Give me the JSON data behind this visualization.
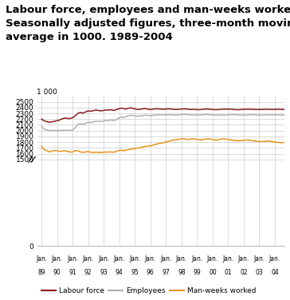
{
  "title_line1": "Labour force, employees and man-weeks worked.",
  "title_line2": "Seasonally adjusted figures, three-month moving",
  "title_line3": "average in 1000. 1989-2004",
  "title_fontsize": 9.5,
  "ylim": [
    0,
    2600
  ],
  "yticks": [
    0,
    1500,
    1600,
    1700,
    1800,
    1900,
    2000,
    2100,
    2200,
    2300,
    2400,
    2500
  ],
  "ytick_labels": [
    "0",
    "1500",
    "1600",
    "1700",
    "1800",
    "1900",
    "2000",
    "2100",
    "2200",
    "2300",
    "2400",
    "2500"
  ],
  "top_label": "1 000",
  "labour_force_color": "#8B1A1A",
  "employees_color": "#B0B0B0",
  "manweeks_color": "#E8921A",
  "legend_labels": [
    "Labour force",
    "Employees",
    "Man-weeks worked"
  ],
  "line_width": 1.1,
  "background_color": "#ffffff",
  "grid_color": "#cccccc",
  "labour_force": [
    2200,
    2185,
    2170,
    2162,
    2155,
    2152,
    2148,
    2150,
    2152,
    2158,
    2162,
    2168,
    2172,
    2178,
    2185,
    2195,
    2205,
    2212,
    2218,
    2215,
    2212,
    2208,
    2210,
    2215,
    2225,
    2242,
    2260,
    2278,
    2298,
    2308,
    2315,
    2308,
    2305,
    2312,
    2325,
    2335,
    2342,
    2338,
    2336,
    2340,
    2348,
    2352,
    2358,
    2353,
    2348,
    2344,
    2342,
    2346,
    2352,
    2358,
    2354,
    2354,
    2358,
    2362,
    2358,
    2354,
    2354,
    2358,
    2366,
    2376,
    2382,
    2388,
    2388,
    2383,
    2378,
    2373,
    2382,
    2388,
    2393,
    2393,
    2388,
    2383,
    2378,
    2373,
    2368,
    2366,
    2368,
    2373,
    2378,
    2383,
    2383,
    2378,
    2373,
    2368,
    2366,
    2368,
    2373,
    2375,
    2376,
    2378,
    2378,
    2376,
    2373,
    2371,
    2370,
    2371,
    2376,
    2378,
    2378,
    2376,
    2374,
    2371,
    2370,
    2368,
    2366,
    2368,
    2371,
    2373,
    2374,
    2376,
    2376,
    2376,
    2373,
    2371,
    2368,
    2366,
    2366,
    2368,
    2368,
    2366,
    2364,
    2363,
    2363,
    2366,
    2368,
    2371,
    2373,
    2374,
    2374,
    2372,
    2370,
    2368,
    2366,
    2364,
    2363,
    2363,
    2364,
    2366,
    2368,
    2370,
    2371,
    2372,
    2373,
    2374,
    2374,
    2372,
    2370,
    2368,
    2366,
    2364,
    2363,
    2363,
    2363,
    2365,
    2366,
    2368,
    2369,
    2370,
    2371,
    2372,
    2371,
    2370,
    2369,
    2368,
    2367,
    2366,
    2365,
    2365,
    2365,
    2366,
    2367,
    2368,
    2369,
    2370,
    2369,
    2368,
    2367,
    2366,
    2366,
    2367,
    2368,
    2369,
    2370,
    2369,
    2368,
    2367,
    2366,
    2365,
    2364,
    2365,
    2366,
    2368
  ],
  "employees": [
    2075,
    2045,
    2025,
    2018,
    2012,
    2008,
    2004,
    2003,
    2002,
    2002,
    2002,
    2003,
    2003,
    2002,
    2002,
    2003,
    2005,
    2007,
    2009,
    2007,
    2005,
    2004,
    2005,
    2007,
    2012,
    2030,
    2055,
    2078,
    2108,
    2115,
    2120,
    2112,
    2108,
    2112,
    2126,
    2136,
    2144,
    2141,
    2141,
    2144,
    2151,
    2158,
    2166,
    2164,
    2161,
    2159,
    2158,
    2161,
    2166,
    2174,
    2171,
    2171,
    2176,
    2184,
    2181,
    2178,
    2179,
    2182,
    2196,
    2211,
    2221,
    2231,
    2234,
    2231,
    2231,
    2241,
    2251,
    2258,
    2264,
    2266,
    2264,
    2261,
    2258,
    2254,
    2251,
    2251,
    2254,
    2258,
    2261,
    2266,
    2268,
    2266,
    2264,
    2261,
    2258,
    2261,
    2266,
    2269,
    2270,
    2272,
    2274,
    2273,
    2271,
    2270,
    2269,
    2270,
    2274,
    2276,
    2278,
    2276,
    2274,
    2272,
    2271,
    2270,
    2268,
    2270,
    2273,
    2276,
    2278,
    2280,
    2281,
    2281,
    2278,
    2276,
    2274,
    2272,
    2271,
    2273,
    2273,
    2271,
    2270,
    2269,
    2269,
    2271,
    2274,
    2277,
    2279,
    2280,
    2280,
    2278,
    2276,
    2274,
    2272,
    2270,
    2269,
    2269,
    2270,
    2272,
    2272,
    2270,
    2269,
    2268,
    2268,
    2270,
    2273,
    2276,
    2278,
    2279,
    2279,
    2277,
    2275,
    2273,
    2271,
    2269,
    2268,
    2268,
    2268,
    2270,
    2272,
    2274,
    2275,
    2276,
    2275,
    2274,
    2273,
    2272,
    2271,
    2270,
    2269,
    2270,
    2271,
    2272,
    2273,
    2274,
    2273,
    2272,
    2271,
    2270,
    2270,
    2271,
    2272,
    2273,
    2274,
    2273,
    2272,
    2271,
    2270,
    2269,
    2268,
    2269,
    2270,
    2272
  ],
  "manweeks": [
    1730,
    1692,
    1672,
    1662,
    1652,
    1642,
    1636,
    1632,
    1642,
    1652,
    1656,
    1656,
    1650,
    1645,
    1640,
    1640,
    1645,
    1650,
    1650,
    1644,
    1639,
    1634,
    1630,
    1626,
    1632,
    1642,
    1652,
    1656,
    1651,
    1641,
    1631,
    1626,
    1621,
    1626,
    1631,
    1636,
    1636,
    1631,
    1626,
    1621,
    1621,
    1623,
    1626,
    1624,
    1621,
    1619,
    1618,
    1621,
    1626,
    1629,
    1626,
    1627,
    1629,
    1631,
    1629,
    1626,
    1629,
    1633,
    1641,
    1651,
    1656,
    1659,
    1656,
    1651,
    1651,
    1661,
    1669,
    1671,
    1676,
    1681,
    1683,
    1686,
    1689,
    1691,
    1696,
    1701,
    1706,
    1711,
    1716,
    1721,
    1726,
    1729,
    1731,
    1733,
    1736,
    1741,
    1749,
    1756,
    1761,
    1769,
    1776,
    1779,
    1781,
    1786,
    1791,
    1796,
    1801,
    1809,
    1816,
    1821,
    1826,
    1831,
    1836,
    1841,
    1846,
    1841,
    1849,
    1856,
    1859,
    1861,
    1856,
    1851,
    1846,
    1849,
    1851,
    1853,
    1856,
    1859,
    1856,
    1851,
    1849,
    1843,
    1841,
    1839,
    1841,
    1849,
    1851,
    1853,
    1859,
    1861,
    1856,
    1851,
    1843,
    1839,
    1836,
    1833,
    1839,
    1846,
    1853,
    1856,
    1859,
    1857,
    1853,
    1849,
    1846,
    1841,
    1839,
    1836,
    1833,
    1831,
    1829,
    1826,
    1823,
    1826,
    1829,
    1831,
    1833,
    1836,
    1836,
    1839,
    1836,
    1831,
    1829,
    1823,
    1821,
    1819,
    1816,
    1813,
    1811,
    1809,
    1809,
    1811,
    1813,
    1816,
    1819,
    1821,
    1816,
    1811,
    1809,
    1806,
    1801,
    1799,
    1796,
    1793,
    1791,
    1791,
    1793,
    1795,
    1797,
    1799,
    1801,
    1801
  ]
}
